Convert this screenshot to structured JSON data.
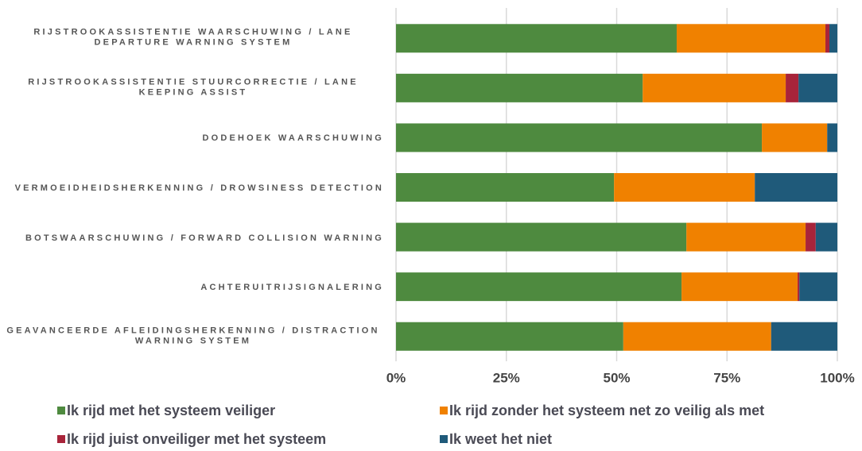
{
  "chart_data": {
    "type": "stacked_barh",
    "categories": [
      "RIJSTROOKASSISTENTIE WAARSCHUWING / LANE DEPARTURE WARNING SYSTEM",
      "RIJSTROOKASSISTENTIE STUURCORRECTIE / LANE KEEPING ASSIST",
      "DODEHOEK WAARSCHUWING",
      "VERMOEIDHEIDSHERKENNING / DROWSINESS DETECTION",
      "BOTSWAARSCHUWING / FORWARD COLLISION WARNING",
      "ACHTERUITRIJSIGNALERING",
      "GEAVANCEERDE AFLEIDINGSHERKENNING / DISTRACTION WARNING SYSTEM"
    ],
    "series": [
      {
        "name": "Ik rijd met het systeem veiliger",
        "color": "#4e8a3f",
        "values": [
          63.6,
          55.9,
          82.9,
          49.4,
          65.8,
          64.7,
          51.5
        ]
      },
      {
        "name": "Ik rijd zonder het systeem net zo veilig als met",
        "color": "#f08100",
        "values": [
          33.7,
          32.4,
          14.8,
          31.9,
          27.0,
          26.3,
          33.5
        ]
      },
      {
        "name": "Ik rijd juist onveiliger met het systeem",
        "color": "#a8243a",
        "values": [
          0.9,
          2.9,
          0,
          0,
          2.3,
          0.4,
          0
        ]
      },
      {
        "name": "Ik weet het niet",
        "color": "#1f5a7a",
        "values": [
          1.8,
          8.8,
          2.3,
          18.7,
          4.9,
          8.6,
          15.0
        ]
      }
    ],
    "xlim": [
      0,
      100
    ],
    "xticks": [
      {
        "value": 0,
        "label": "0%"
      },
      {
        "value": 25,
        "label": "25%"
      },
      {
        "value": 50,
        "label": "50%"
      },
      {
        "value": 75,
        "label": "75%"
      },
      {
        "value": 100,
        "label": "100%"
      }
    ],
    "grid": true
  }
}
